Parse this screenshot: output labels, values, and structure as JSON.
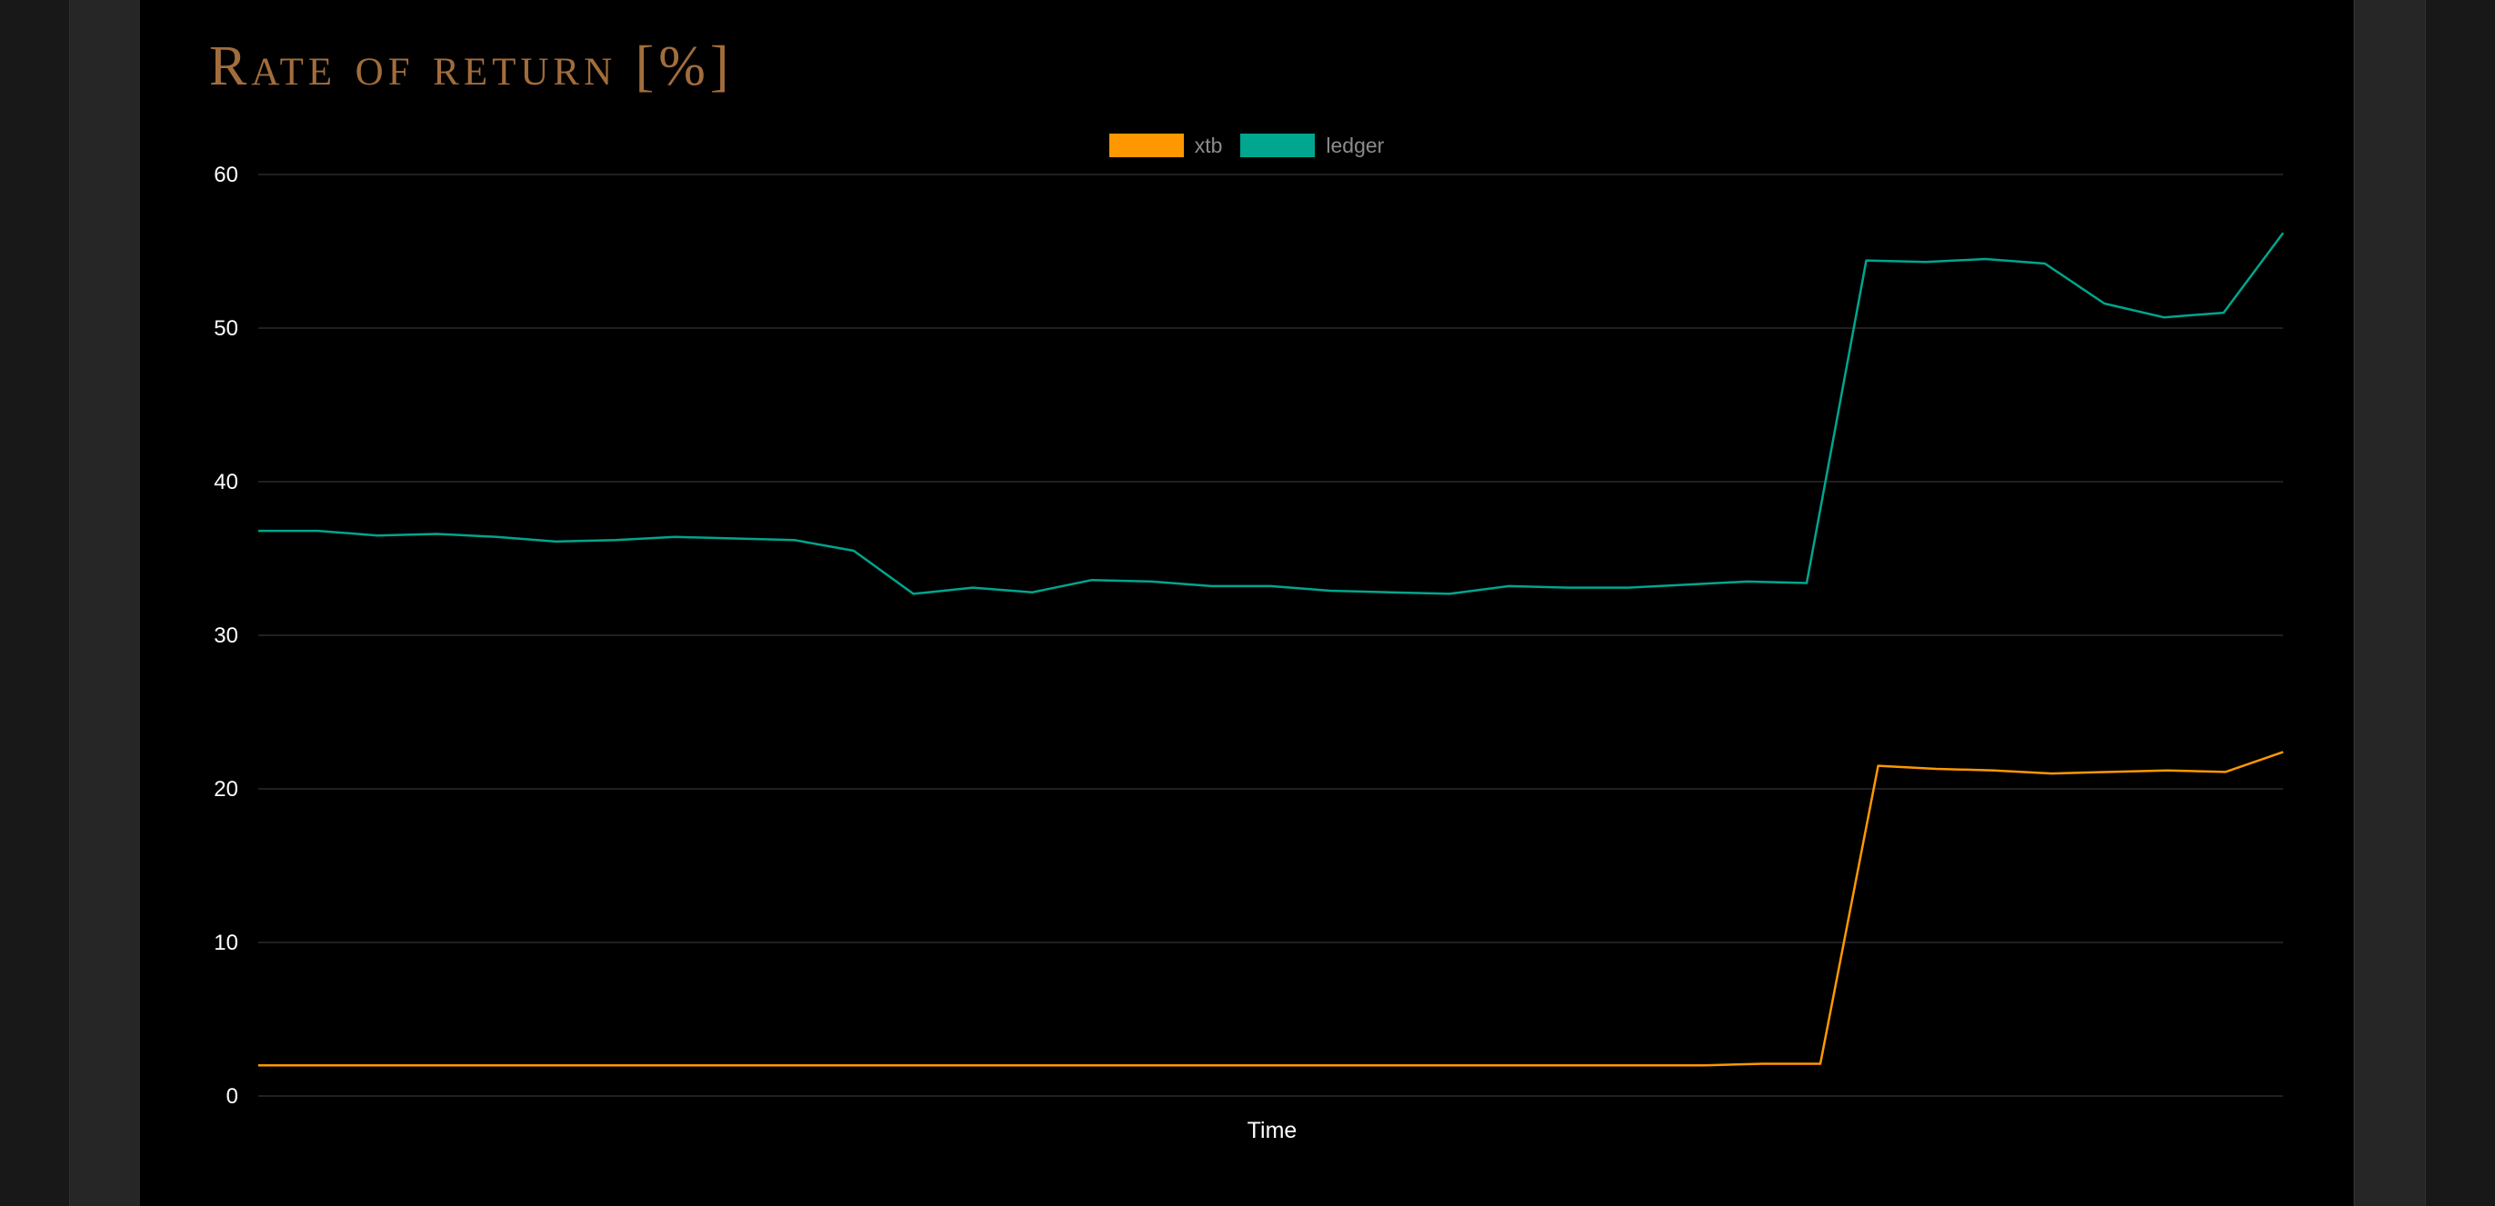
{
  "title": "Rate of return [%]",
  "colors": {
    "background": "#000000",
    "title": "#a26d3d",
    "grid": "#2a2a2a",
    "tick_text": "#ffffff",
    "legend_text": "#8c8c8c"
  },
  "chart_data": {
    "type": "line",
    "title": "Rate of return [%]",
    "xlabel": "Time",
    "ylabel": "",
    "ylim": [
      0,
      60
    ],
    "yticks": [
      0,
      10,
      20,
      30,
      40,
      50,
      60
    ],
    "grid": true,
    "legend_position": "top-center",
    "series": [
      {
        "name": "xtb",
        "color": "#ff9800",
        "values": [
          2.0,
          2.0,
          2.0,
          2.0,
          2.0,
          2.0,
          2.0,
          2.0,
          2.0,
          2.0,
          2.0,
          2.0,
          2.0,
          2.0,
          2.0,
          2.0,
          2.0,
          2.0,
          2.0,
          2.0,
          2.0,
          2.0,
          2.0,
          2.0,
          2.0,
          2.0,
          2.1,
          2.1,
          21.5,
          21.3,
          21.2,
          21.0,
          21.1,
          21.2,
          21.1,
          22.4
        ]
      },
      {
        "name": "ledger",
        "color": "#00a68e",
        "values": [
          36.8,
          36.8,
          36.5,
          36.6,
          36.4,
          36.1,
          36.2,
          36.4,
          36.3,
          36.2,
          35.5,
          32.7,
          33.1,
          32.8,
          33.6,
          33.5,
          33.2,
          33.2,
          32.9,
          32.8,
          32.7,
          33.2,
          33.1,
          33.1,
          33.3,
          33.5,
          33.4,
          54.4,
          54.3,
          54.5,
          54.2,
          51.6,
          50.7,
          51.0,
          56.2
        ]
      }
    ]
  }
}
